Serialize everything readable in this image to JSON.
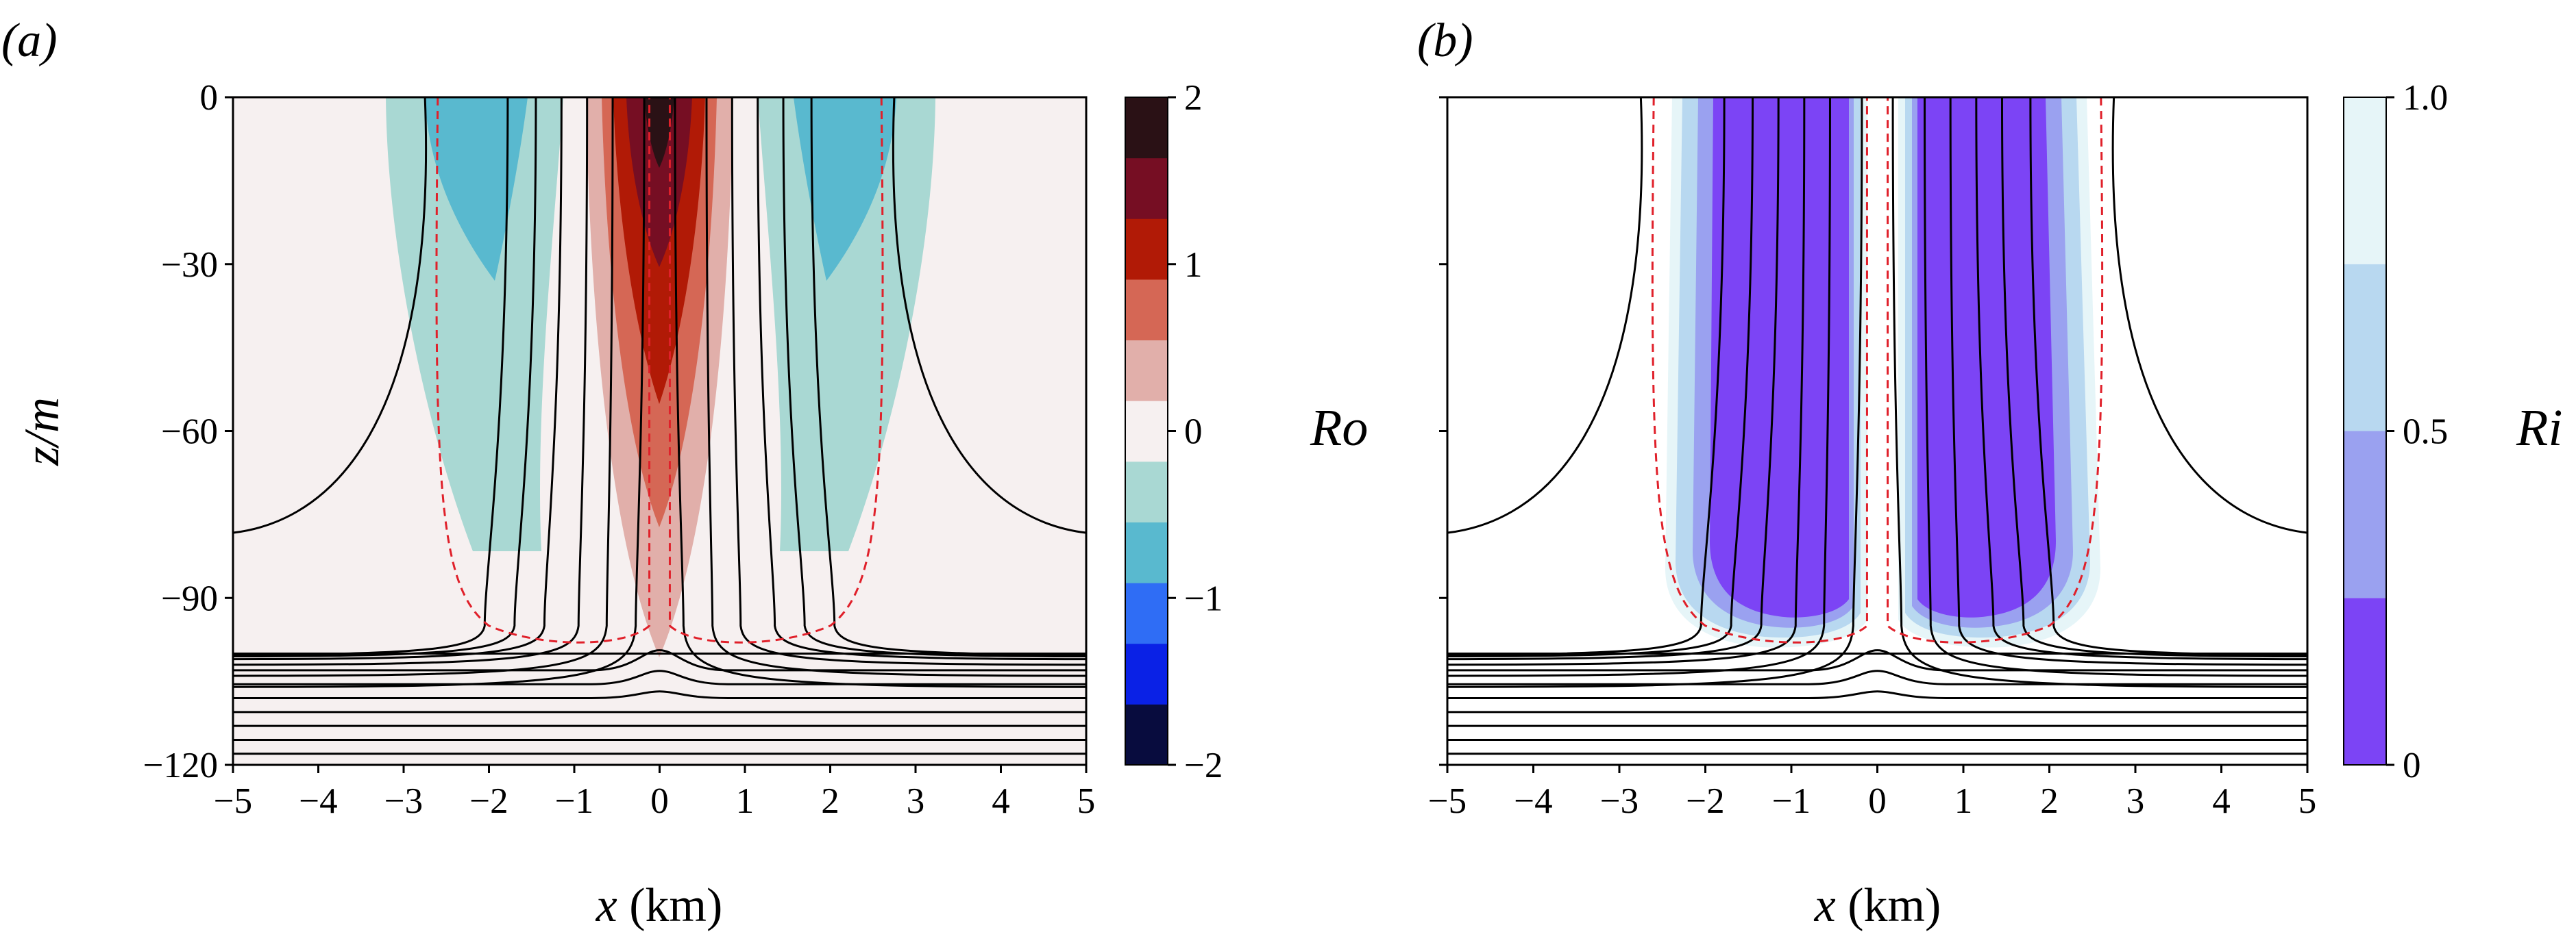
{
  "chart_data": [
    {
      "panel": "(a)",
      "type": "heatmap",
      "xlabel_var": "x",
      "xlabel_unit": " (km)",
      "ylabel": "z/m",
      "xlim": [
        -5,
        5
      ],
      "ylim": [
        -120,
        0
      ],
      "x_ticks": [
        -5,
        -4,
        -3,
        -2,
        -1,
        0,
        1,
        2,
        3,
        4,
        5
      ],
      "x_tick_labels": [
        "−5",
        "−4",
        "−3",
        "−2",
        "−1",
        "0",
        "1",
        "2",
        "3",
        "4",
        "5"
      ],
      "y_ticks": [
        0,
        -30,
        -60,
        -90,
        -120
      ],
      "y_tick_labels": [
        "0",
        "−30",
        "−60",
        "−90",
        "−120"
      ],
      "colorbar": {
        "label": "Ro",
        "range": [
          -2,
          2
        ],
        "levels": [
          -2,
          -1.5,
          -1,
          -0.5,
          0,
          0.5,
          1,
          1.5,
          2
        ],
        "colors": [
          "#080c3e",
          "#0a21e6",
          "#2f6df5",
          "#59b9cf",
          "#a9d8d3",
          "#f6f0f0",
          "#e1afaa",
          "#d56755",
          "#b11a06",
          "#760e23",
          "#2a1115"
        ],
        "ticks": [
          2,
          1,
          0,
          -1,
          -2
        ],
        "tick_labels": [
          "2",
          "1",
          "0",
          "−1",
          "−2"
        ]
      },
      "contours_black": "isopycnals",
      "contours_red_dashed": "boundary"
    },
    {
      "panel": "(b)",
      "type": "heatmap",
      "xlabel_var": "x",
      "xlabel_unit": " (km)",
      "xlim": [
        -5,
        5
      ],
      "ylim": [
        -120,
        0
      ],
      "x_ticks": [
        -5,
        -4,
        -3,
        -2,
        -1,
        0,
        1,
        2,
        3,
        4,
        5
      ],
      "x_tick_labels": [
        "−5",
        "−4",
        "−3",
        "−2",
        "−1",
        "0",
        "1",
        "2",
        "3",
        "4",
        "5"
      ],
      "colorbar": {
        "label": "Ri",
        "range": [
          0,
          1
        ],
        "levels": [
          0,
          0.25,
          0.5,
          0.75,
          1
        ],
        "colors": [
          "#7c44f5",
          "#9aa1f0",
          "#b8d8f0",
          "#e6f5f8"
        ],
        "ticks": [
          1.0,
          0.5,
          0
        ],
        "tick_labels": [
          "1.0",
          "0.5",
          "0"
        ]
      }
    }
  ]
}
